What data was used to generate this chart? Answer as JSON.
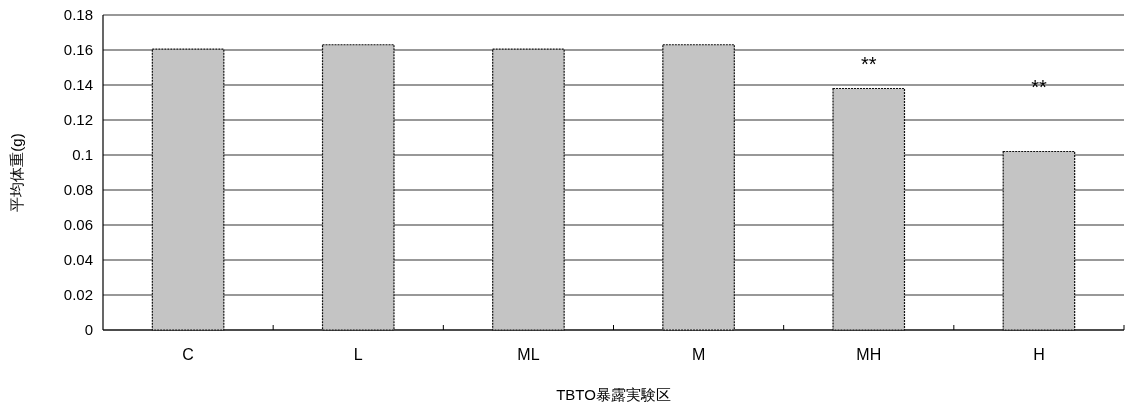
{
  "chart_data": {
    "type": "bar",
    "xlabel": "TBTO暴露実験区",
    "ylabel": "平均体重(g)",
    "categories": [
      "C",
      "L",
      "ML",
      "M",
      "MH",
      "H"
    ],
    "values": [
      0.1605,
      0.163,
      0.1605,
      0.163,
      0.138,
      0.102
    ],
    "color": "#c4c4c4",
    "ylim": [
      0,
      0.18
    ],
    "yticks": [
      0,
      0.02,
      0.04,
      0.06,
      0.08,
      0.1,
      0.12,
      0.14,
      0.16,
      0.18
    ],
    "grid": "y",
    "annotations": [
      {
        "text": "**",
        "x": "MH",
        "y": 0.138
      },
      {
        "text": "**",
        "x": "H",
        "y": 0.102
      }
    ]
  }
}
